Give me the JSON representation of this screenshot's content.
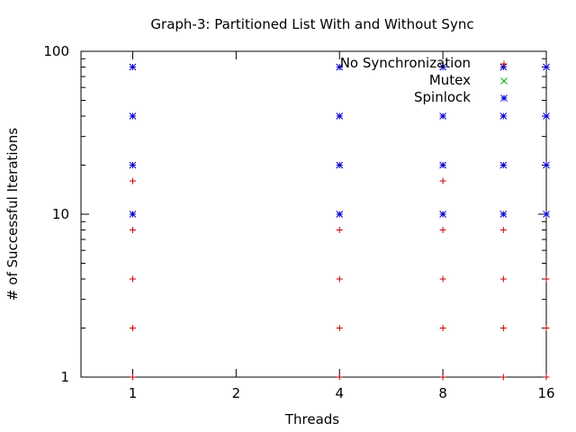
{
  "chart_data": {
    "type": "scatter",
    "title": "Graph-3: Partitioned List With and Without Sync",
    "xlabel": "Threads",
    "ylabel": "# of Successful Iterations",
    "xscale": "log2",
    "yscale": "log10",
    "xlim": [
      0.707,
      16
    ],
    "ylim": [
      1,
      100
    ],
    "xticks": [
      {
        "value": 1,
        "label": "1"
      },
      {
        "value": 2,
        "label": "2"
      },
      {
        "value": 4,
        "label": "4"
      },
      {
        "value": 8,
        "label": "8"
      },
      {
        "value": 16,
        "label": "16"
      }
    ],
    "yticks": [
      {
        "value": 1,
        "label": "1"
      },
      {
        "value": 10,
        "label": "10"
      },
      {
        "value": 100,
        "label": "100"
      }
    ],
    "grid": false,
    "legend_position": "top-right",
    "series": [
      {
        "name": "No Synchronization",
        "color": "#cc0000",
        "marker": "plus",
        "points": [
          {
            "x": 1,
            "y": 1
          },
          {
            "x": 1,
            "y": 2
          },
          {
            "x": 1,
            "y": 4
          },
          {
            "x": 1,
            "y": 8
          },
          {
            "x": 1,
            "y": 16
          },
          {
            "x": 4,
            "y": 1
          },
          {
            "x": 4,
            "y": 2
          },
          {
            "x": 4,
            "y": 4
          },
          {
            "x": 4,
            "y": 8
          },
          {
            "x": 8,
            "y": 1
          },
          {
            "x": 8,
            "y": 2
          },
          {
            "x": 8,
            "y": 4
          },
          {
            "x": 8,
            "y": 8
          },
          {
            "x": 8,
            "y": 16
          },
          {
            "x": 12,
            "y": 1
          },
          {
            "x": 12,
            "y": 2
          },
          {
            "x": 12,
            "y": 4
          },
          {
            "x": 12,
            "y": 8
          },
          {
            "x": 16,
            "y": 1
          },
          {
            "x": 16,
            "y": 2
          },
          {
            "x": 16,
            "y": 4
          }
        ]
      },
      {
        "name": "Mutex",
        "color": "#00aa00",
        "marker": "cross",
        "points": []
      },
      {
        "name": "Spinlock",
        "color": "#0000cc",
        "marker": "star",
        "points": [
          {
            "x": 1,
            "y": 10
          },
          {
            "x": 1,
            "y": 20
          },
          {
            "x": 1,
            "y": 40
          },
          {
            "x": 1,
            "y": 80
          },
          {
            "x": 4,
            "y": 10
          },
          {
            "x": 4,
            "y": 20
          },
          {
            "x": 4,
            "y": 40
          },
          {
            "x": 4,
            "y": 80
          },
          {
            "x": 8,
            "y": 10
          },
          {
            "x": 8,
            "y": 20
          },
          {
            "x": 8,
            "y": 40
          },
          {
            "x": 8,
            "y": 80
          },
          {
            "x": 12,
            "y": 10
          },
          {
            "x": 12,
            "y": 20
          },
          {
            "x": 12,
            "y": 40
          },
          {
            "x": 12,
            "y": 80
          },
          {
            "x": 16,
            "y": 10
          },
          {
            "x": 16,
            "y": 20
          },
          {
            "x": 16,
            "y": 40
          },
          {
            "x": 16,
            "y": 80
          }
        ]
      }
    ]
  }
}
